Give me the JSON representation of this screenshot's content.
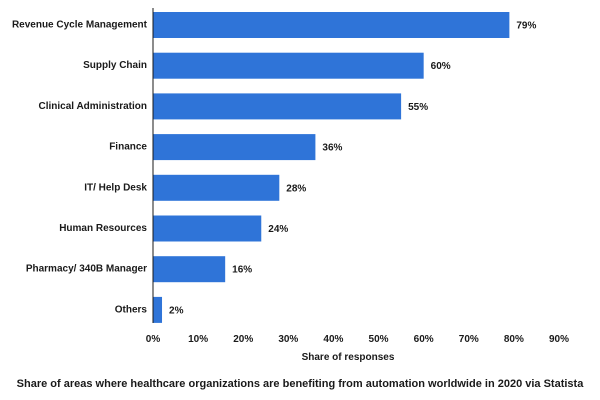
{
  "chart_data": {
    "type": "bar",
    "orientation": "horizontal",
    "categories": [
      "Revenue Cycle Management",
      "Supply Chain",
      "Clinical Administration",
      "Finance",
      "IT/ Help Desk",
      "Human Resources",
      "Pharmacy/ 340B Manager",
      "Others"
    ],
    "values": [
      79,
      60,
      55,
      36,
      28,
      24,
      16,
      2
    ],
    "value_labels": [
      "79%",
      "60%",
      "55%",
      "36%",
      "28%",
      "24%",
      "16%",
      "2%"
    ],
    "xlabel": "Share of responses",
    "ylabel": "",
    "xlim": [
      0,
      90
    ],
    "x_ticks": [
      0,
      10,
      20,
      30,
      40,
      50,
      60,
      70,
      80,
      90
    ],
    "x_tick_labels": [
      "0%",
      "10%",
      "20%",
      "30%",
      "40%",
      "50%",
      "60%",
      "70%",
      "80%",
      "90%"
    ],
    "grid": false,
    "bar_color": "#2f74d8",
    "caption": "Share of areas where healthcare organizations are benefiting from automation worldwide in 2020 via Statista"
  }
}
